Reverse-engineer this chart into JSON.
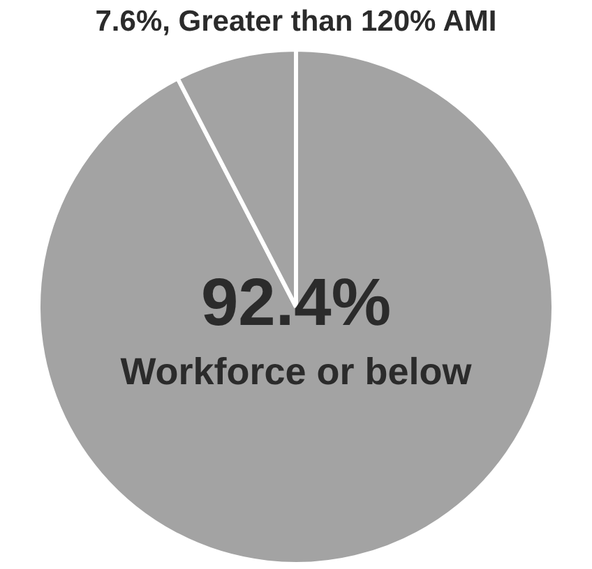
{
  "chart_data": {
    "type": "pie",
    "categories": [
      "Workforce or below",
      "Greater than 120% AMI"
    ],
    "values": [
      92.4,
      7.6
    ],
    "colors": [
      "#a3a3a3",
      "#a3a3a3"
    ],
    "value_labels": [
      "92.4%",
      "7.6%"
    ],
    "legend": false
  }
}
